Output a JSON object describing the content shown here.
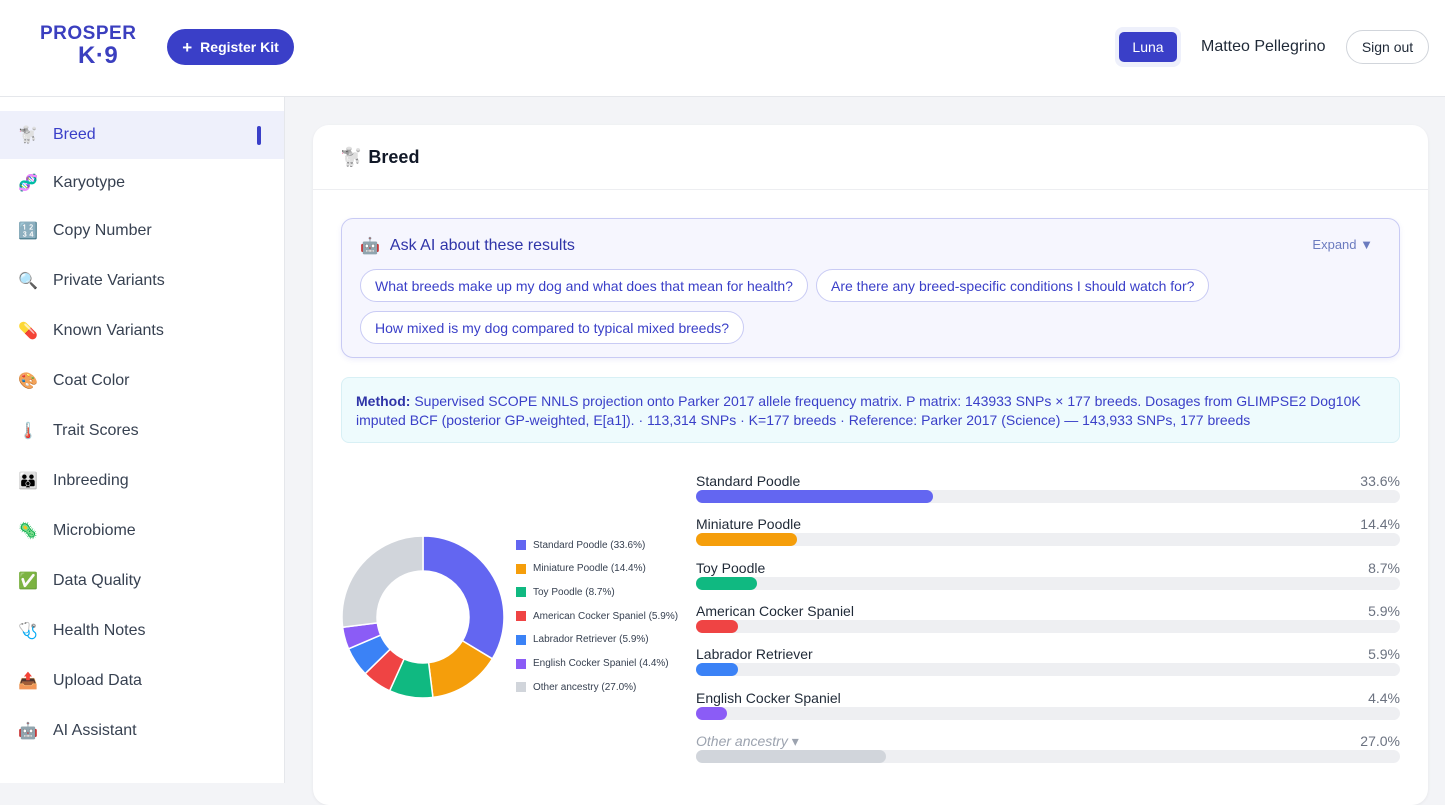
{
  "header": {
    "logo_line1": "PROSPER",
    "logo_line2": "K·9",
    "register_button": "Register Kit",
    "dog_name": "Luna",
    "user_name": "Matteo Pellegrino",
    "signout_button": "Sign out",
    "accent_color": "#3a3fc8"
  },
  "sidebar": {
    "items": [
      {
        "icon": "🐩",
        "icon_name": "poodle-icon",
        "label": "Breed",
        "active": true
      },
      {
        "icon": "🧬",
        "icon_name": "chromosome-icon",
        "label": "Karyotype"
      },
      {
        "icon": "🔢",
        "icon_name": "numbers-icon",
        "label": "Copy Number"
      },
      {
        "icon": "🔍",
        "icon_name": "magnifier-icon",
        "label": "Private Variants"
      },
      {
        "icon": "💊",
        "icon_name": "pill-icon",
        "label": "Known Variants"
      },
      {
        "icon": "🎨",
        "icon_name": "palette-icon",
        "label": "Coat Color"
      },
      {
        "icon": "🌡️",
        "icon_name": "thermometer-icon",
        "label": "Trait Scores"
      },
      {
        "icon": "👪",
        "icon_name": "family-icon",
        "label": "Inbreeding"
      },
      {
        "icon": "🦠",
        "icon_name": "microbe-icon",
        "label": "Microbiome"
      },
      {
        "icon": "✅",
        "icon_name": "check-icon",
        "label": "Data Quality"
      },
      {
        "icon": "🩺",
        "icon_name": "stethoscope-icon",
        "label": "Health Notes"
      },
      {
        "icon": "📤",
        "icon_name": "upload-icon",
        "label": "Upload Data"
      },
      {
        "icon": "🤖",
        "icon_name": "robot-icon",
        "label": "AI Assistant"
      }
    ]
  },
  "main": {
    "title": "Breed",
    "title_icon": "🐩",
    "ai": {
      "icon": "🤖",
      "title": "Ask AI about these results",
      "expand": "Expand ▼",
      "chips": [
        "What breeds make up my dog and what does that mean for health?",
        "Are there any breed-specific conditions I should watch for?",
        "How mixed is my dog compared to typical mixed breeds?"
      ]
    },
    "method": {
      "label": "Method:",
      "text": "Supervised SCOPE NNLS projection onto Parker 2017 allele frequency matrix. P matrix: 143933 SNPs × 177 breeds. Dosages from GLIMPSE2 Dog10K imputed BCF (posterior GP-weighted, E[a1]). · 113,314 SNPs · K=177 breeds · Reference: Parker 2017 (Science) — 143,933 SNPs, 177 breeds"
    }
  },
  "chart_data": {
    "type": "pie",
    "categories": [
      "Standard Poodle",
      "Miniature Poodle",
      "Toy Poodle",
      "American Cocker Spaniel",
      "Labrador Retriever",
      "English Cocker Spaniel",
      "Other ancestry"
    ],
    "values": [
      33.6,
      14.4,
      8.7,
      5.9,
      5.9,
      4.4,
      27.0
    ],
    "colors": [
      "#6366f1",
      "#f59e0b",
      "#10b981",
      "#ef4444",
      "#3b82f6",
      "#8b5cf6",
      "#d1d5db"
    ],
    "legend_labels": [
      "Standard Poodle (33.6%)",
      "Miniature Poodle (14.4%)",
      "Toy Poodle (8.7%)",
      "American Cocker Spaniel (5.9%)",
      "Labrador Retriever (5.9%)",
      "English Cocker Spaniel (4.4%)",
      "Other ancestry (27.0%)"
    ],
    "pct_labels": [
      "33.6%",
      "14.4%",
      "8.7%",
      "5.9%",
      "5.9%",
      "4.4%",
      "27.0%"
    ],
    "other_label": "Other ancestry ▾",
    "legend_position": "right"
  }
}
